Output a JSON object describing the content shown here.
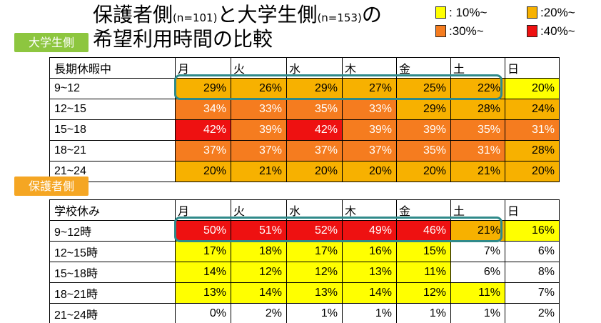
{
  "title": {
    "line1_a": "保護者側",
    "line1_b": "(n=101)",
    "line1_c": "と大学生側",
    "line1_d": "(n=153)",
    "line1_e": "の",
    "line2": "希望利用時間の比較"
  },
  "legend": [
    {
      "label": ": 10%~",
      "color": "#ffff00"
    },
    {
      "label": ":20%~",
      "color": "#f7b100"
    },
    {
      "label": ":30%~",
      "color": "#f57c1f"
    },
    {
      "label": ":40%~",
      "color": "#ee1111"
    }
  ],
  "tags": {
    "student": "大学生側",
    "guardian": "保護者側"
  },
  "student_table": {
    "header": [
      "長期休暇中",
      "月",
      "火",
      "水",
      "木",
      "金",
      "土",
      "日"
    ],
    "rows": [
      {
        "label": "9~12",
        "values": [
          "29%",
          "26%",
          "29%",
          "27%",
          "25%",
          "22%",
          "20%"
        ],
        "levels": [
          2,
          2,
          2,
          2,
          2,
          2,
          1
        ]
      },
      {
        "label": "12~15",
        "values": [
          "34%",
          "33%",
          "35%",
          "33%",
          "29%",
          "28%",
          "24%"
        ],
        "levels": [
          3,
          3,
          3,
          3,
          2,
          2,
          2
        ]
      },
      {
        "label": "15~18",
        "values": [
          "42%",
          "39%",
          "42%",
          "39%",
          "39%",
          "35%",
          "31%"
        ],
        "levels": [
          4,
          3,
          4,
          3,
          3,
          3,
          3
        ]
      },
      {
        "label": "18~21",
        "values": [
          "37%",
          "37%",
          "37%",
          "37%",
          "35%",
          "31%",
          "28%"
        ],
        "levels": [
          3,
          3,
          3,
          3,
          3,
          3,
          2
        ]
      },
      {
        "label": "21~24",
        "values": [
          "20%",
          "21%",
          "20%",
          "20%",
          "20%",
          "21%",
          "20%"
        ],
        "levels": [
          2,
          2,
          2,
          2,
          2,
          2,
          2
        ]
      }
    ]
  },
  "guardian_table": {
    "header": [
      "学校休み",
      "月",
      "火",
      "水",
      "木",
      "金",
      "土",
      "日"
    ],
    "rows": [
      {
        "label": "9~12時",
        "values": [
          "50%",
          "51%",
          "52%",
          "49%",
          "46%",
          "21%",
          "16%"
        ],
        "levels": [
          4,
          4,
          4,
          4,
          4,
          2,
          1
        ]
      },
      {
        "label": "12~15時",
        "values": [
          "17%",
          "18%",
          "17%",
          "16%",
          "15%",
          "7%",
          "6%"
        ],
        "levels": [
          1,
          1,
          1,
          1,
          1,
          0,
          0
        ]
      },
      {
        "label": "15~18時",
        "values": [
          "14%",
          "12%",
          "12%",
          "13%",
          "11%",
          "6%",
          "8%"
        ],
        "levels": [
          1,
          1,
          1,
          1,
          1,
          0,
          0
        ]
      },
      {
        "label": "18~21時",
        "values": [
          "13%",
          "14%",
          "13%",
          "14%",
          "12%",
          "11%",
          "7%"
        ],
        "levels": [
          1,
          1,
          1,
          1,
          1,
          1,
          0
        ]
      },
      {
        "label": "21~24時",
        "values": [
          "0%",
          "2%",
          "1%",
          "1%",
          "1%",
          "1%",
          "2%"
        ],
        "levels": [
          0,
          0,
          0,
          0,
          0,
          0,
          0
        ]
      }
    ]
  }
}
